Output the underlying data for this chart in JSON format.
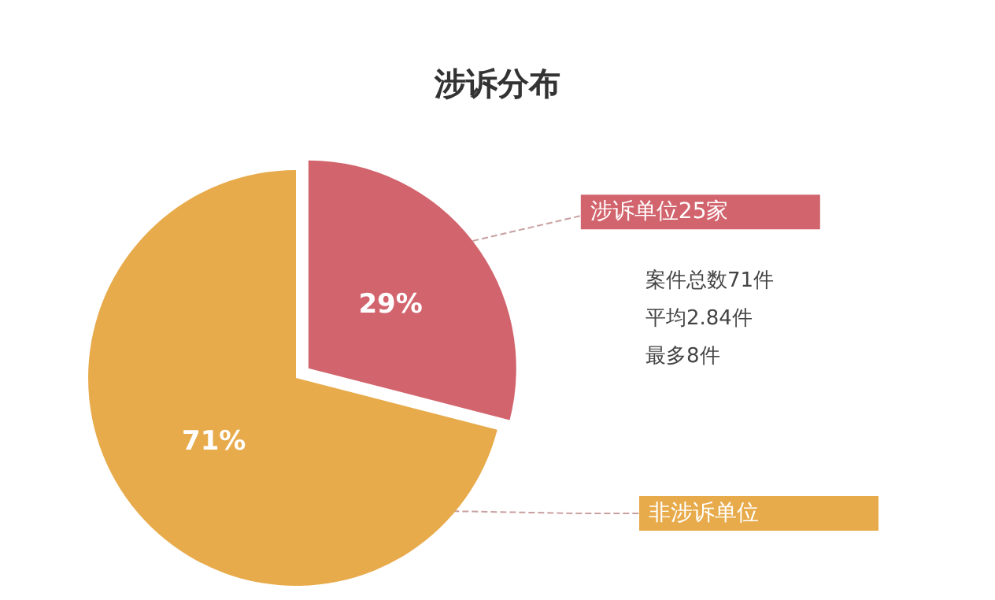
{
  "chart_data": {
    "type": "pie",
    "title": "涉诉分布",
    "categories": [
      "涉诉单位25家",
      "非涉诉单位"
    ],
    "values": [
      29,
      71
    ],
    "value_labels": [
      "29%",
      "71%"
    ],
    "colors": [
      "#d2646d",
      "#e8ab4c"
    ],
    "annotations": [
      "案件总数71件",
      "平均2.84件",
      "最多8件"
    ]
  }
}
